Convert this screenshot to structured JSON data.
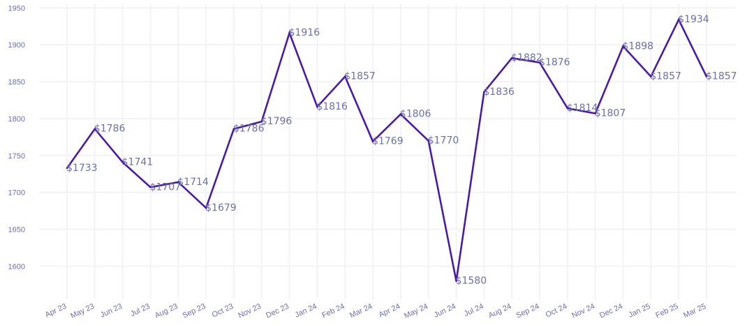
{
  "chart_data": {
    "type": "line",
    "title": "",
    "xlabel": "",
    "ylabel": "",
    "ylim": [
      1555,
      1955
    ],
    "yticks": [
      1600,
      1650,
      1700,
      1750,
      1800,
      1850,
      1900,
      1950
    ],
    "grid": true,
    "legend": "none",
    "line_color": "#4a1aa6",
    "label_color": "#6b6fa8",
    "value_prefix": "$",
    "categories": [
      "Apr 23",
      "May 23",
      "Jun 23",
      "Jul 23",
      "Aug 23",
      "Sep 23",
      "Oct 23",
      "Nov 23",
      "Dec 23",
      "Jan 24",
      "Feb 24",
      "Mar 24",
      "Apr 24",
      "May 24",
      "Jun 24",
      "Jul 24",
      "Aug 24",
      "Sep 24",
      "Oct 24",
      "Nov 24",
      "Dec 24",
      "Jan 25",
      "Feb 25",
      "Mar 25"
    ],
    "series": [
      {
        "values": [
          1733,
          1786,
          1741,
          1707,
          1714,
          1679,
          1786,
          1796,
          1916,
          1816,
          1857,
          1769,
          1806,
          1770,
          1580,
          1836,
          1882,
          1876,
          1814,
          1807,
          1898,
          1857,
          1934,
          1857
        ]
      }
    ]
  }
}
